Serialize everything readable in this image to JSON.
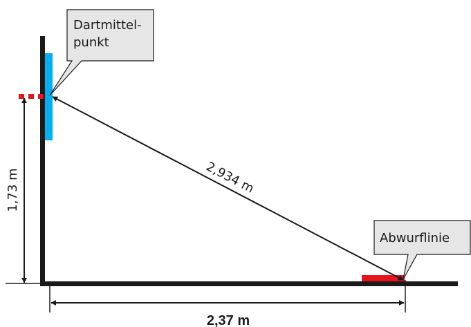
{
  "callouts": {
    "dart_center": {
      "line1": "Dartmittel-",
      "line2": "punkt"
    },
    "throw_line": {
      "label": "Abwurflinie"
    }
  },
  "dimensions": {
    "height": "1,73 m",
    "diagonal": "2,934 m",
    "horizontal": "2,37 m"
  },
  "colors": {
    "board": "#00b0f0",
    "marker": "#e8141c",
    "callout_fill": "#e6e6e6",
    "line": "#1a1a1a"
  }
}
